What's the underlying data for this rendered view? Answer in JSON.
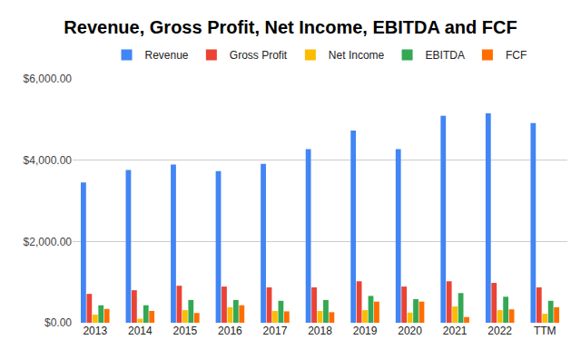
{
  "chart_data": {
    "type": "bar",
    "title": "Revenue, Gross Profit, Net Income, EBITDA and FCF",
    "categories": [
      "2013",
      "2014",
      "2015",
      "2016",
      "2017",
      "2018",
      "2019",
      "2020",
      "2021",
      "2022",
      "TTM"
    ],
    "series": [
      {
        "name": "Revenue",
        "color": "#4285f4",
        "values": [
          3450,
          3760,
          3890,
          3730,
          3910,
          4270,
          4730,
          4270,
          5090,
          5150,
          4910
        ]
      },
      {
        "name": "Gross Profit",
        "color": "#ea4335",
        "values": [
          710,
          800,
          910,
          890,
          870,
          870,
          1020,
          890,
          1020,
          980,
          870
        ]
      },
      {
        "name": "Net Income",
        "color": "#fbbc04",
        "values": [
          200,
          100,
          310,
          380,
          290,
          290,
          310,
          250,
          400,
          310,
          220
        ]
      },
      {
        "name": "EBITDA",
        "color": "#34a853",
        "values": [
          430,
          430,
          560,
          560,
          540,
          560,
          660,
          580,
          730,
          640,
          540
        ]
      },
      {
        "name": "FCF",
        "color": "#ff6d01",
        "values": [
          340,
          290,
          240,
          430,
          280,
          260,
          520,
          520,
          140,
          330,
          380
        ]
      }
    ],
    "ylim": [
      0,
      6000
    ],
    "yticks": [
      {
        "value": 0,
        "label": "$0.00"
      },
      {
        "value": 2000,
        "label": "$2,000.00"
      },
      {
        "value": 4000,
        "label": "$4,000.00"
      },
      {
        "value": 6000,
        "label": "$6,000.00"
      }
    ],
    "grid": true,
    "legend": "top"
  }
}
